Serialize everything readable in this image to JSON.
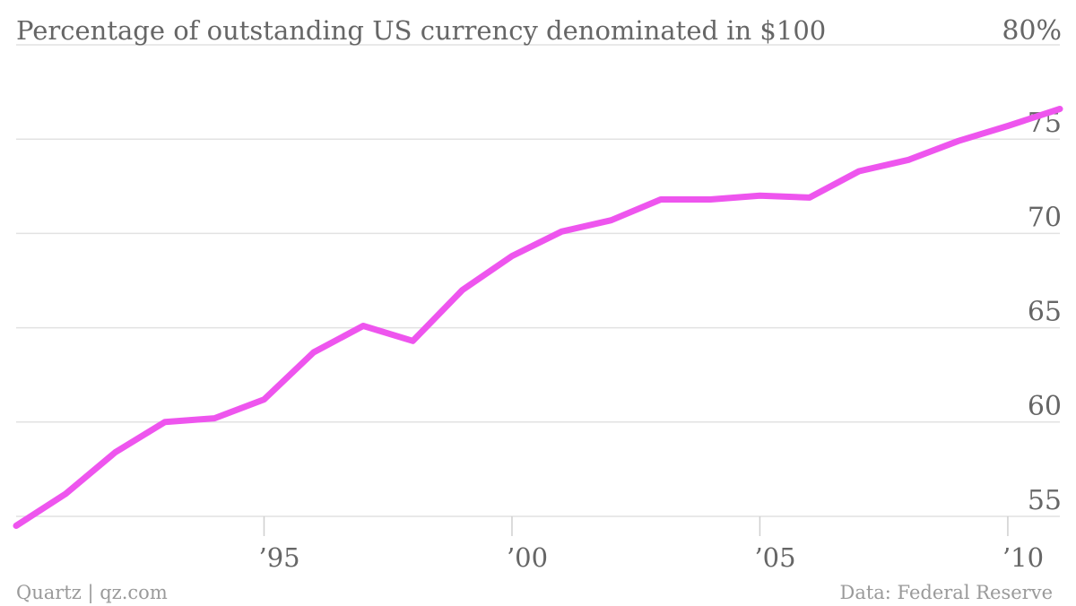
{
  "chart_data": {
    "type": "line",
    "title": "Percentage of outstanding US currency denominated in $100",
    "ylim": [
      54,
      80
    ],
    "y_ticks": [
      {
        "value": 55,
        "label": "55"
      },
      {
        "value": 60,
        "label": "60"
      },
      {
        "value": 65,
        "label": "65"
      },
      {
        "value": 70,
        "label": "70"
      },
      {
        "value": 75,
        "label": "75"
      },
      {
        "value": 80,
        "label": "80%"
      }
    ],
    "xlim": [
      1990,
      2011.05
    ],
    "x_ticks": [
      {
        "value": 1995,
        "label": "’95"
      },
      {
        "value": 2000,
        "label": "’00"
      },
      {
        "value": 2005,
        "label": "’05"
      },
      {
        "value": 2010,
        "label": "’10"
      }
    ],
    "grid": true,
    "series": [
      {
        "color": "#ee55ee",
        "x": [
          1990,
          1991,
          1992,
          1993,
          1994,
          1995,
          1996,
          1997,
          1998,
          1999,
          2000,
          2001,
          2002,
          2003,
          2004,
          2005,
          2006,
          2007,
          2008,
          2009,
          2010,
          2011.05
        ],
        "y": [
          54.5,
          56.2,
          58.4,
          60.0,
          60.2,
          61.2,
          63.7,
          65.1,
          64.3,
          67.0,
          68.8,
          70.1,
          70.7,
          71.8,
          71.8,
          72.0,
          71.9,
          73.3,
          73.9,
          74.9,
          75.7,
          76.6
        ]
      }
    ]
  },
  "footer": {
    "left": "Quartz | qz.com",
    "right": "Data: Federal Reserve"
  }
}
